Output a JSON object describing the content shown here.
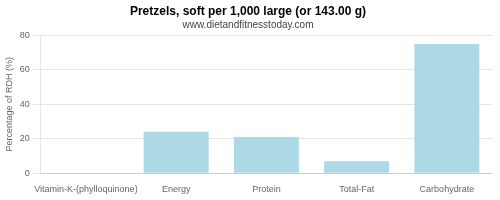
{
  "chart_data": {
    "type": "bar",
    "title": "Pretzels, soft per 1,000 large (or 143.00 g)",
    "subtitle": "www.dietandfitnesstoday.com",
    "categories": [
      "Vitamin-K-(phylloquinone)",
      "Energy",
      "Protein",
      "Total-Fat",
      "Carbohydrate"
    ],
    "values": [
      0,
      24,
      21,
      7,
      75
    ],
    "color": "#add8e6",
    "ylabel": "Percentage of RDH (%)",
    "ylim": [
      0,
      80
    ],
    "yticks": [
      0,
      20,
      40,
      60,
      80
    ],
    "grid": true
  }
}
